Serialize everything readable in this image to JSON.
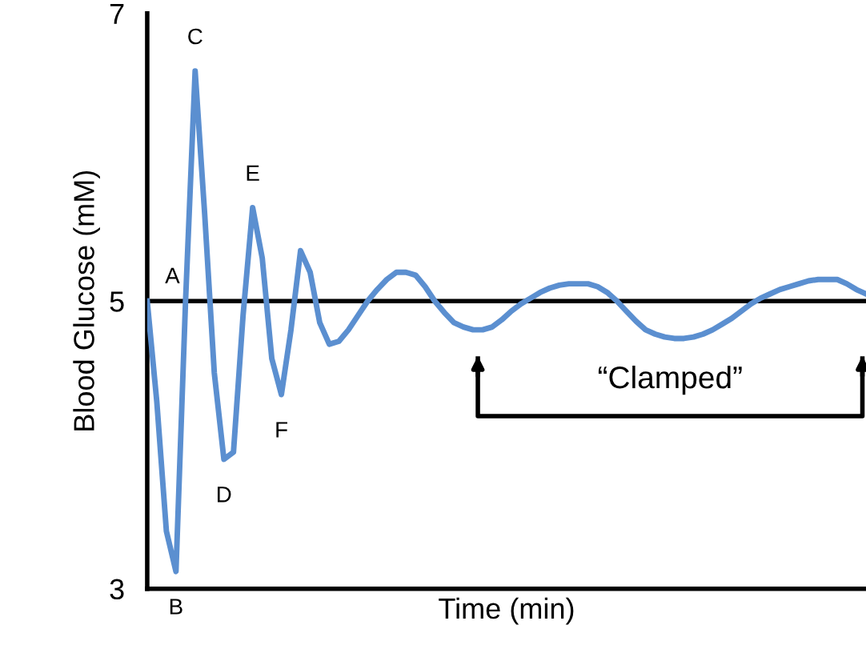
{
  "chart_data": {
    "type": "line",
    "xlabel": "Time (min)",
    "ylabel": "Blood Glucose (mM)",
    "ylim": [
      3,
      7
    ],
    "yticks": [
      3,
      5,
      7
    ],
    "grid": false,
    "legend": false,
    "marker": "none",
    "line_style": "solid",
    "categories": [
      null,
      null,
      null,
      null,
      null,
      null,
      null,
      null,
      null,
      null,
      null,
      null,
      null,
      null,
      null,
      null,
      null,
      null,
      null,
      null,
      null,
      null,
      null,
      null,
      null,
      null,
      null,
      null,
      null,
      null,
      null,
      null,
      null,
      null,
      null,
      null,
      null,
      null,
      null,
      null,
      null,
      null,
      null,
      null,
      null,
      null,
      null,
      null,
      null,
      null,
      null,
      null,
      null,
      null,
      null,
      null,
      null,
      null,
      null,
      null,
      null,
      null,
      null,
      null,
      null,
      null,
      null,
      null,
      null,
      null,
      null,
      null,
      null,
      null,
      null,
      null
    ],
    "series": [
      {
        "color": "#5b8fd0",
        "values": [
          5.0,
          4.3,
          3.4,
          3.12,
          5.0,
          6.6,
          5.6,
          4.5,
          3.9,
          3.95,
          4.9,
          5.65,
          5.3,
          4.6,
          4.35,
          4.8,
          5.35,
          5.2,
          4.85,
          4.7,
          4.72,
          4.8,
          4.9,
          5.0,
          5.08,
          5.15,
          5.2,
          5.2,
          5.18,
          5.1,
          5.0,
          4.92,
          4.85,
          4.82,
          4.8,
          4.8,
          4.82,
          4.87,
          4.93,
          4.98,
          5.02,
          5.06,
          5.09,
          5.11,
          5.12,
          5.12,
          5.12,
          5.1,
          5.06,
          5.0,
          4.93,
          4.86,
          4.8,
          4.77,
          4.75,
          4.74,
          4.74,
          4.75,
          4.77,
          4.8,
          4.84,
          4.88,
          4.93,
          4.98,
          5.02,
          5.05,
          5.08,
          5.1,
          5.12,
          5.14,
          5.15,
          5.15,
          5.15,
          5.12,
          5.08,
          5.05
        ]
      }
    ],
    "ref_lines": [
      {
        "axis": "y",
        "value": 5,
        "color": "#000000",
        "line_style": "solid"
      }
    ],
    "annotations": [
      "A",
      "B",
      "C",
      "D",
      "E",
      "F",
      "“Clamped”"
    ]
  }
}
